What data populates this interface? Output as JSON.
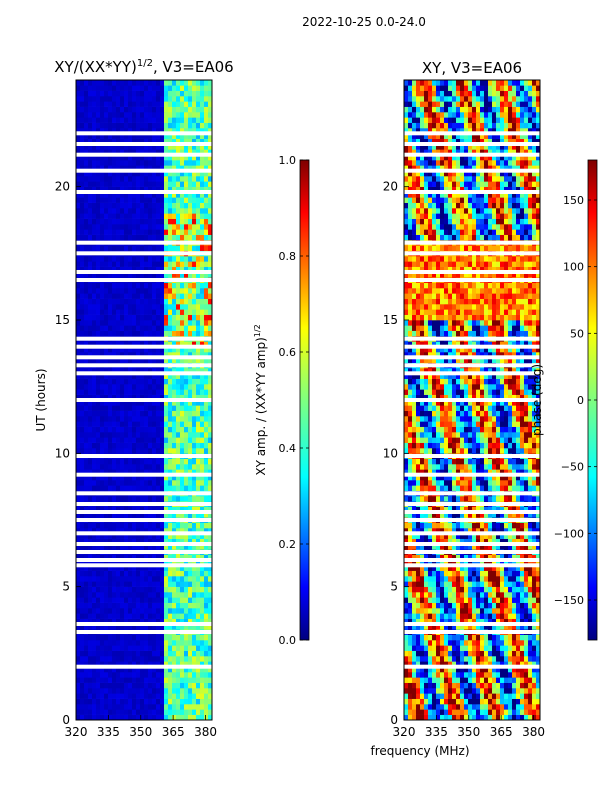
{
  "figure": {
    "suptitle": "2022-10-25 0.0-24.0",
    "shared_xlabel": "frequency (MHz)"
  },
  "colors": {
    "jet": [
      "#00007f",
      "#0000ff",
      "#007fff",
      "#00ffff",
      "#7fff7f",
      "#ffff00",
      "#ff7f00",
      "#ff0000",
      "#7f0000"
    ],
    "gap": "#ffffff"
  },
  "chart_data": [
    {
      "type": "heatmap",
      "name": "amplitude",
      "title": "XY/(XX*YY)",
      "title_sup": "1/2",
      "title_suffix": ", V3=EA06",
      "xlabel": "",
      "ylabel": "UT (hours)",
      "xlim": [
        320,
        383
      ],
      "ylim": [
        0,
        24
      ],
      "xticks": [
        "320",
        "335",
        "350",
        "365",
        "380"
      ],
      "yticks": [
        "0",
        "5",
        "10",
        "15",
        "20"
      ],
      "active_band_mhz": [
        361,
        382
      ],
      "colorbar": {
        "label": "XY amp. / (XX*YY amp)",
        "label_sup": "1/2",
        "range": [
          0.0,
          1.0
        ],
        "ticks": [
          "0.0",
          "0.2",
          "0.4",
          "0.6",
          "0.8",
          "1.0"
        ]
      }
    },
    {
      "type": "heatmap",
      "name": "phase",
      "title": "XY, V3=EA06",
      "xlabel": "frequency (MHz)",
      "ylabel": "",
      "xlim": [
        320,
        383
      ],
      "ylim": [
        0,
        24
      ],
      "xticks": [
        "320",
        "335",
        "350",
        "365",
        "380"
      ],
      "yticks": [
        "0",
        "5",
        "10",
        "15",
        "20"
      ],
      "colorbar": {
        "label": "phase (deg)",
        "range": [
          -180,
          180
        ],
        "ticks": [
          "−150",
          "−100",
          "−50",
          "0",
          "50",
          "100",
          "150"
        ]
      }
    }
  ],
  "gaps_hours": [
    2.0,
    3.3,
    3.6,
    5.8,
    6.0,
    6.3,
    6.6,
    7.0,
    7.5,
    7.8,
    8.1,
    8.5,
    9.2,
    9.9,
    12.0,
    13.0,
    13.3,
    13.6,
    14.0,
    14.3,
    16.5,
    16.8,
    17.5,
    17.9,
    19.8,
    20.6,
    21.2,
    21.6,
    22.0
  ]
}
